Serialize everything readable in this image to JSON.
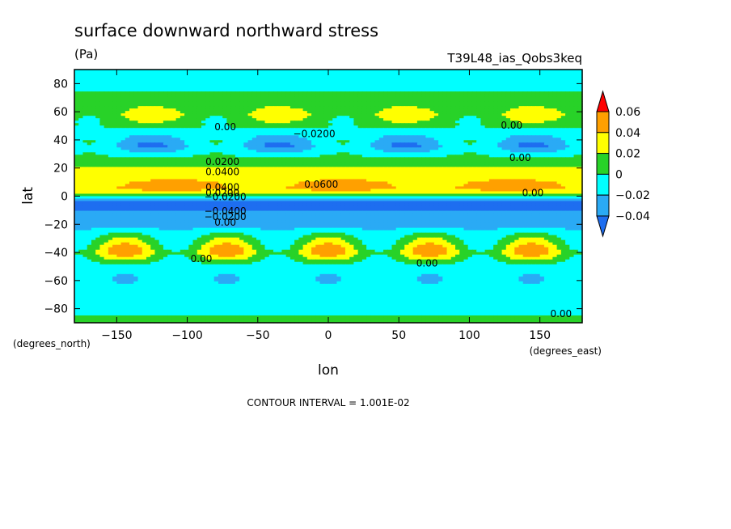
{
  "chart_data": {
    "type": "heatmap",
    "title": "surface downward northward stress",
    "units": "(Pa)",
    "experiment": "T39L48_ias_Qobs3keq",
    "xlabel": "lon",
    "ylabel": "lat",
    "x_units": "(degrees_east)",
    "y_units": "(degrees_north)",
    "xlim": [
      -180,
      180
    ],
    "ylim": [
      -90,
      90
    ],
    "x_ticks": [
      -150,
      -100,
      -50,
      0,
      50,
      100,
      150
    ],
    "x_tick_labels": [
      "−150",
      "−100",
      "−50",
      "0",
      "50",
      "100",
      "150"
    ],
    "y_ticks": [
      -80,
      -60,
      -40,
      -20,
      0,
      20,
      40,
      60,
      80
    ],
    "y_tick_labels": [
      "−80",
      "−60",
      "−40",
      "−20",
      "0",
      "20",
      "40",
      "60",
      "80"
    ],
    "footnote": "CONTOUR INTERVAL = 1.001E-02",
    "colorbar": {
      "levels": [
        -0.04,
        -0.02,
        0,
        0.02,
        0.04,
        0.06
      ],
      "labels": [
        "−0.04",
        "−0.02",
        "0",
        "0.02",
        "0.04",
        "0.06"
      ],
      "colors": [
        "#1e6ef0",
        "#2aaaf5",
        "#00ffff",
        "#28d228",
        "#ffff00",
        "#ffa000",
        "#ff0000"
      ],
      "extend": "both"
    },
    "zonal_mean_profile": {
      "lat": [
        -90,
        -80,
        -70,
        -60,
        -50,
        -40,
        -30,
        -20,
        -10,
        -5,
        0,
        3,
        6,
        10,
        15,
        20,
        27,
        35,
        42,
        50,
        58,
        68,
        78,
        90
      ],
      "stress": [
        0.003,
        -0.002,
        -0.007,
        -0.012,
        -0.01,
        0.03,
        0.006,
        -0.03,
        -0.04,
        -0.045,
        -0.01,
        0.03,
        0.045,
        0.04,
        0.03,
        0.02,
        0.003,
        -0.025,
        -0.015,
        0.005,
        0.02,
        0.007,
        -0.005,
        -0.006
      ]
    },
    "waves": [
      {
        "lat_center": -37,
        "lat_width": 10,
        "amplitude": 0.03,
        "wavenumber": 5,
        "phase_lon": 72
      },
      {
        "lat_center": -58,
        "lat_width": 8,
        "amplitude": 0.012,
        "wavenumber": 5,
        "phase_lon": 108
      },
      {
        "lat_center": 37,
        "lat_width": 7,
        "amplitude": 0.022,
        "wavenumber": 4,
        "phase_lon": 100
      },
      {
        "lat_center": 57,
        "lat_width": 7,
        "amplitude": 0.018,
        "wavenumber": 4,
        "phase_lon": 55
      },
      {
        "lat_center": 7,
        "lat_width": 4,
        "amplitude": 0.012,
        "wavenumber": 3,
        "phase_lon": 10
      }
    ],
    "contour_labels": [
      {
        "text": "0.00",
        "lon": -73,
        "lat": 47
      },
      {
        "text": "−0.0200",
        "lon": -10,
        "lat": 42
      },
      {
        "text": "0.00",
        "lon": 130,
        "lat": 48
      },
      {
        "text": "0.00",
        "lon": 136,
        "lat": 25
      },
      {
        "text": "0.0200",
        "lon": -75,
        "lat": 22
      },
      {
        "text": "0.0400",
        "lon": -75,
        "lat": 15
      },
      {
        "text": "0.0600",
        "lon": -5,
        "lat": 6
      },
      {
        "text": "0.0400",
        "lon": -75,
        "lat": 4
      },
      {
        "text": "0.0200",
        "lon": -75,
        "lat": 0
      },
      {
        "text": "−0.0200",
        "lon": -73,
        "lat": -3
      },
      {
        "text": "−0.0400",
        "lon": -73,
        "lat": -13
      },
      {
        "text": "−0.0200",
        "lon": -73,
        "lat": -17
      },
      {
        "text": "0.00",
        "lon": -73,
        "lat": -21
      },
      {
        "text": "0.00",
        "lon": -90,
        "lat": -47
      },
      {
        "text": "0.00",
        "lon": 145,
        "lat": 0
      },
      {
        "text": "0.00",
        "lon": 70,
        "lat": -50
      },
      {
        "text": "0.00",
        "lon": 165,
        "lat": -86
      }
    ]
  }
}
